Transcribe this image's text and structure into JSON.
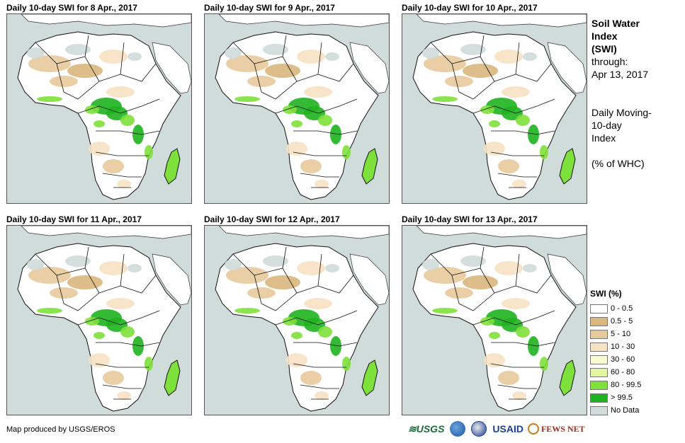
{
  "panels": [
    {
      "title": "Daily 10-day  SWI for 8 Apr., 2017"
    },
    {
      "title": "Daily 10-day  SWI for 9 Apr., 2017"
    },
    {
      "title": "Daily 10-day  SWI for 10 Apr., 2017"
    },
    {
      "title": "Daily 10-day  SWI for 11 Apr., 2017"
    },
    {
      "title": "Daily 10-day  SWI for 12 Apr., 2017"
    },
    {
      "title": "Daily 10-day  SWI for 13 Apr., 2017"
    }
  ],
  "side": {
    "heading_line1": "Soil Water",
    "heading_line2": "Index",
    "heading_line3": "(SWI)",
    "through_label": "through:",
    "through_date": "Apr 13, 2017",
    "desc_line1": "Daily Moving-",
    "desc_line2": "10-day",
    "desc_line3": "Index",
    "units": "(% of WHC)"
  },
  "legend": {
    "title": "SWI (%)",
    "items": [
      {
        "label": "0 - 0.5",
        "color": "#ffffff"
      },
      {
        "label": "0.5 - 5",
        "color": "#d9b77e"
      },
      {
        "label": "5 - 10",
        "color": "#e8c99c"
      },
      {
        "label": "10 - 30",
        "color": "#f7e1c3"
      },
      {
        "label": "30 - 60",
        "color": "#fafad0"
      },
      {
        "label": "60 - 80",
        "color": "#e4f7a0"
      },
      {
        "label": "80 - 99.5",
        "color": "#7ee03a"
      },
      {
        "label": "> 99.5",
        "color": "#1fb31f"
      },
      {
        "label": "No Data",
        "color": "#cfdcd9"
      }
    ]
  },
  "credit": "Map produced by USGS/EROS",
  "logos": {
    "usgs": "≋USGS",
    "usaid": "USAID",
    "fews": "FEWS NET"
  }
}
